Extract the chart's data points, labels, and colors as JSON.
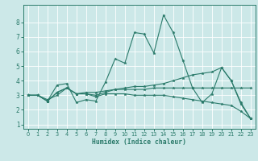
{
  "xlabel": "Humidex (Indice chaleur)",
  "bg_color": "#cce8e8",
  "line_color": "#2a7a6a",
  "xlim": [
    -0.5,
    23.5
  ],
  "ylim": [
    0.7,
    9.2
  ],
  "yticks": [
    1,
    2,
    3,
    4,
    5,
    6,
    7,
    8
  ],
  "xticks": [
    0,
    1,
    2,
    3,
    4,
    5,
    6,
    7,
    8,
    9,
    10,
    11,
    12,
    13,
    14,
    15,
    16,
    17,
    18,
    19,
    20,
    21,
    22,
    23
  ],
  "lines": [
    {
      "x": [
        0,
        1,
        2,
        3,
        4,
        5,
        6,
        7,
        8,
        9,
        10,
        11,
        12,
        13,
        14,
        15,
        16,
        17,
        18,
        19,
        20,
        21,
        22,
        23
      ],
      "y": [
        3.0,
        3.0,
        2.6,
        3.7,
        3.8,
        2.5,
        2.7,
        2.6,
        3.9,
        5.5,
        5.2,
        7.3,
        7.2,
        5.9,
        8.5,
        7.3,
        5.4,
        3.5,
        2.5,
        3.1,
        4.9,
        4.0,
        2.4,
        1.4
      ]
    },
    {
      "x": [
        0,
        1,
        2,
        3,
        4,
        5,
        6,
        7,
        8,
        9,
        10,
        11,
        12,
        13,
        14,
        15,
        16,
        17,
        18,
        19,
        20,
        21,
        22,
        23
      ],
      "y": [
        3.0,
        3.0,
        2.6,
        3.2,
        3.5,
        3.1,
        3.1,
        2.9,
        3.1,
        3.1,
        3.1,
        3.0,
        3.0,
        3.0,
        3.0,
        2.9,
        2.8,
        2.7,
        2.6,
        2.5,
        2.4,
        2.3,
        1.9,
        1.4
      ]
    },
    {
      "x": [
        0,
        1,
        2,
        3,
        4,
        5,
        6,
        7,
        8,
        9,
        10,
        11,
        12,
        13,
        14,
        15,
        16,
        17,
        18,
        19,
        20,
        21,
        22,
        23
      ],
      "y": [
        3.0,
        3.0,
        2.7,
        3.0,
        3.5,
        3.1,
        3.1,
        3.0,
        3.2,
        3.4,
        3.5,
        3.6,
        3.6,
        3.7,
        3.8,
        4.0,
        4.2,
        4.4,
        4.5,
        4.6,
        4.9,
        4.0,
        2.5,
        1.4
      ]
    },
    {
      "x": [
        0,
        1,
        2,
        3,
        4,
        5,
        6,
        7,
        8,
        9,
        10,
        11,
        12,
        13,
        14,
        15,
        16,
        17,
        18,
        19,
        20,
        21,
        22,
        23
      ],
      "y": [
        3.0,
        3.0,
        2.6,
        3.2,
        3.5,
        3.1,
        3.2,
        3.2,
        3.3,
        3.4,
        3.4,
        3.4,
        3.4,
        3.5,
        3.5,
        3.5,
        3.5,
        3.5,
        3.5,
        3.5,
        3.5,
        3.5,
        3.5,
        3.5
      ]
    }
  ]
}
